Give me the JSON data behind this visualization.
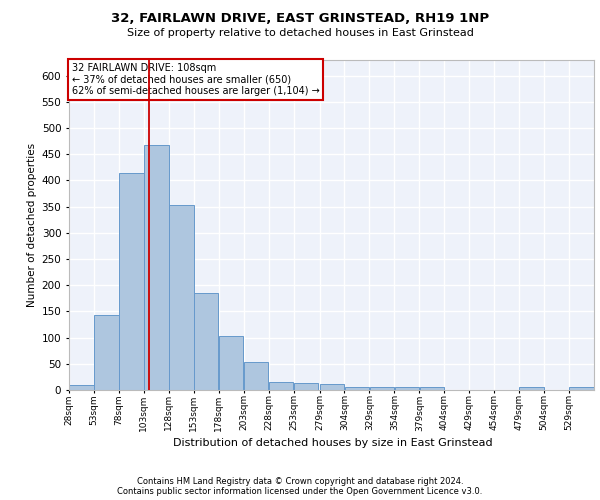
{
  "title_line1": "32, FAIRLAWN DRIVE, EAST GRINSTEAD, RH19 1NP",
  "title_line2": "Size of property relative to detached houses in East Grinstead",
  "xlabel": "Distribution of detached houses by size in East Grinstead",
  "ylabel": "Number of detached properties",
  "annotation_line1": "32 FAIRLAWN DRIVE: 108sqm",
  "annotation_line2": "← 37% of detached houses are smaller (650)",
  "annotation_line3": "62% of semi-detached houses are larger (1,104) →",
  "footer_line1": "Contains HM Land Registry data © Crown copyright and database right 2024.",
  "footer_line2": "Contains public sector information licensed under the Open Government Licence v3.0.",
  "bar_color": "#aec6df",
  "bar_edge_color": "#6699cc",
  "background_color": "#eef2fa",
  "grid_color": "#ffffff",
  "vline_value": 108,
  "vline_color": "#cc0000",
  "bin_edges": [
    28,
    53,
    78,
    103,
    128,
    153,
    178,
    203,
    228,
    253,
    279,
    304,
    329,
    354,
    379,
    404,
    429,
    454,
    479,
    504,
    529
  ],
  "bar_heights": [
    10,
    143,
    415,
    467,
    354,
    186,
    103,
    54,
    16,
    14,
    11,
    6,
    5,
    5,
    5,
    0,
    0,
    0,
    5,
    0,
    5
  ],
  "ylim": [
    0,
    630
  ],
  "yticks": [
    0,
    50,
    100,
    150,
    200,
    250,
    300,
    350,
    400,
    450,
    500,
    550,
    600
  ],
  "tick_labels": [
    "28sqm",
    "53sqm",
    "78sqm",
    "103sqm",
    "128sqm",
    "153sqm",
    "178sqm",
    "203sqm",
    "228sqm",
    "253sqm",
    "279sqm",
    "304sqm",
    "329sqm",
    "354sqm",
    "379sqm",
    "404sqm",
    "429sqm",
    "454sqm",
    "479sqm",
    "504sqm",
    "529sqm"
  ]
}
